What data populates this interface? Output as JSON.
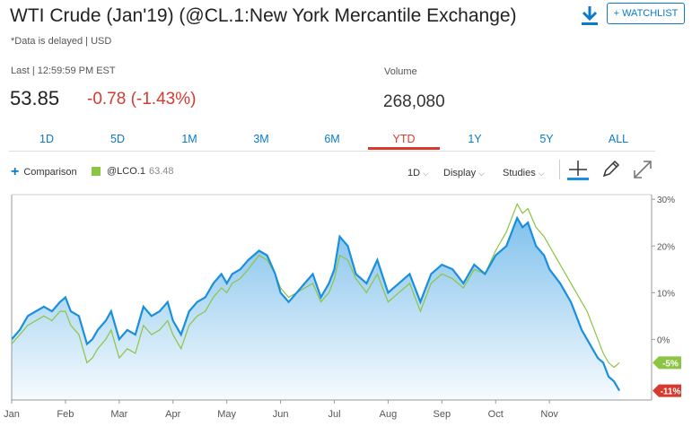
{
  "header": {
    "title": "WTI Crude (Jan'19) (@CL.1:New York Mercantile Exchange)",
    "delayed_note": "*Data is delayed | USD",
    "watchlist_label": "+ WATCHLIST",
    "last_label": "Last | 12:59:59 PM EST",
    "price": "53.85",
    "change": "-0.78 (-1.43%)",
    "volume_label": "Volume",
    "volume_value": "268,080"
  },
  "tabs": {
    "t1d": "1D",
    "t5d": "5D",
    "t1m": "1M",
    "t3m": "3M",
    "t6m": "6M",
    "tytd": "YTD",
    "t1y": "1Y",
    "t5y": "5Y",
    "tall": "ALL",
    "active": "YTD"
  },
  "toolbar": {
    "comparison_label": "Comparison",
    "compare_symbol": "@LCO.1",
    "compare_value": "63.48",
    "interval_label": "1D",
    "display_label": "Display",
    "studies_label": "Studies"
  },
  "icons": {
    "download": "download-icon",
    "crosshair": "crosshair-icon",
    "draw": "pencil-icon",
    "expand": "expand-icon"
  },
  "colors": {
    "primary_line": "#1a8fdd",
    "compare_line": "#8cc444",
    "negative": "#d63a2f",
    "link": "#0a7ac9"
  },
  "chart_data": {
    "type": "line",
    "x_tick_labels": [
      "Jan",
      "Feb",
      "Mar",
      "Apr",
      "May",
      "Jun",
      "Jul",
      "Aug",
      "Sep",
      "Oct",
      "Nov"
    ],
    "y_tick_labels": [
      "30%",
      "20%",
      "10%",
      "0%"
    ],
    "y_ticks": [
      30,
      20,
      10,
      0
    ],
    "ylim": [
      -13,
      31
    ],
    "xlim": [
      0,
      11.9
    ],
    "y_axis_side": "right",
    "grid": false,
    "series": [
      {
        "name": "@CL.1",
        "style": "line-with-area",
        "last_label": "-11%",
        "x": [
          0,
          0.15,
          0.3,
          0.45,
          0.6,
          0.75,
          0.9,
          1.0,
          1.1,
          1.25,
          1.4,
          1.5,
          1.6,
          1.75,
          1.85,
          2.0,
          2.15,
          2.3,
          2.45,
          2.6,
          2.75,
          2.9,
          3.0,
          3.15,
          3.3,
          3.45,
          3.6,
          3.75,
          3.9,
          4.0,
          4.1,
          4.25,
          4.4,
          4.6,
          4.75,
          4.9,
          5.0,
          5.15,
          5.3,
          5.45,
          5.6,
          5.75,
          5.9,
          6.0,
          6.1,
          6.25,
          6.4,
          6.6,
          6.8,
          7.0,
          7.2,
          7.4,
          7.6,
          7.8,
          8.0,
          8.2,
          8.4,
          8.6,
          8.8,
          9.0,
          9.2,
          9.4,
          9.5,
          9.6,
          9.75,
          9.9,
          10.0,
          10.2,
          10.4,
          10.5,
          10.6,
          10.7,
          10.8,
          10.9,
          11.0,
          11.1,
          11.2,
          11.3
        ],
        "values": [
          0,
          2,
          5,
          6,
          7,
          6,
          8,
          9,
          6,
          5,
          -1,
          0,
          2,
          4,
          6,
          0,
          2,
          1,
          7,
          5,
          6,
          8,
          4,
          1,
          6,
          8,
          9,
          12,
          14,
          12,
          14,
          15,
          17,
          19,
          18,
          14,
          10,
          8,
          10,
          12,
          14,
          9,
          12,
          15,
          22,
          20,
          14,
          12,
          17,
          10,
          12,
          14,
          8,
          14,
          16,
          15,
          12,
          16,
          14,
          18,
          20,
          26,
          24,
          25,
          20,
          18,
          15,
          12,
          8,
          5,
          2,
          0,
          -2,
          -4,
          -5,
          -8,
          -9,
          -11
        ]
      },
      {
        "name": "@LCO.1",
        "style": "line",
        "last_label": "-5%",
        "x": [
          0,
          0.15,
          0.3,
          0.45,
          0.6,
          0.75,
          0.9,
          1.0,
          1.1,
          1.25,
          1.4,
          1.5,
          1.6,
          1.75,
          1.85,
          2.0,
          2.15,
          2.3,
          2.45,
          2.6,
          2.75,
          2.9,
          3.0,
          3.15,
          3.3,
          3.45,
          3.6,
          3.75,
          3.9,
          4.0,
          4.1,
          4.25,
          4.4,
          4.6,
          4.75,
          4.9,
          5.0,
          5.15,
          5.3,
          5.45,
          5.6,
          5.75,
          5.9,
          6.0,
          6.1,
          6.25,
          6.4,
          6.6,
          6.8,
          7.0,
          7.2,
          7.4,
          7.6,
          7.8,
          8.0,
          8.2,
          8.4,
          8.6,
          8.8,
          9.0,
          9.2,
          9.4,
          9.5,
          9.6,
          9.75,
          9.9,
          10.0,
          10.2,
          10.4,
          10.5,
          10.6,
          10.7,
          10.8,
          10.9,
          11.0,
          11.1,
          11.2,
          11.3
        ],
        "values": [
          -1,
          1,
          3,
          4,
          5,
          4,
          6,
          6,
          3,
          1,
          -5,
          -4,
          -2,
          0,
          2,
          -4,
          -2,
          -3,
          3,
          1,
          2,
          4,
          1,
          -2,
          3,
          5,
          6,
          9,
          11,
          10,
          12,
          13,
          15,
          18,
          17,
          14,
          11,
          9,
          10,
          11,
          12,
          8,
          10,
          13,
          18,
          17,
          13,
          10,
          14,
          8,
          10,
          12,
          6,
          12,
          14,
          13,
          11,
          15,
          14,
          19,
          23,
          29,
          27,
          28,
          24,
          22,
          20,
          16,
          12,
          10,
          8,
          6,
          3,
          0,
          -3,
          -5,
          -6,
          -5
        ]
      }
    ]
  }
}
